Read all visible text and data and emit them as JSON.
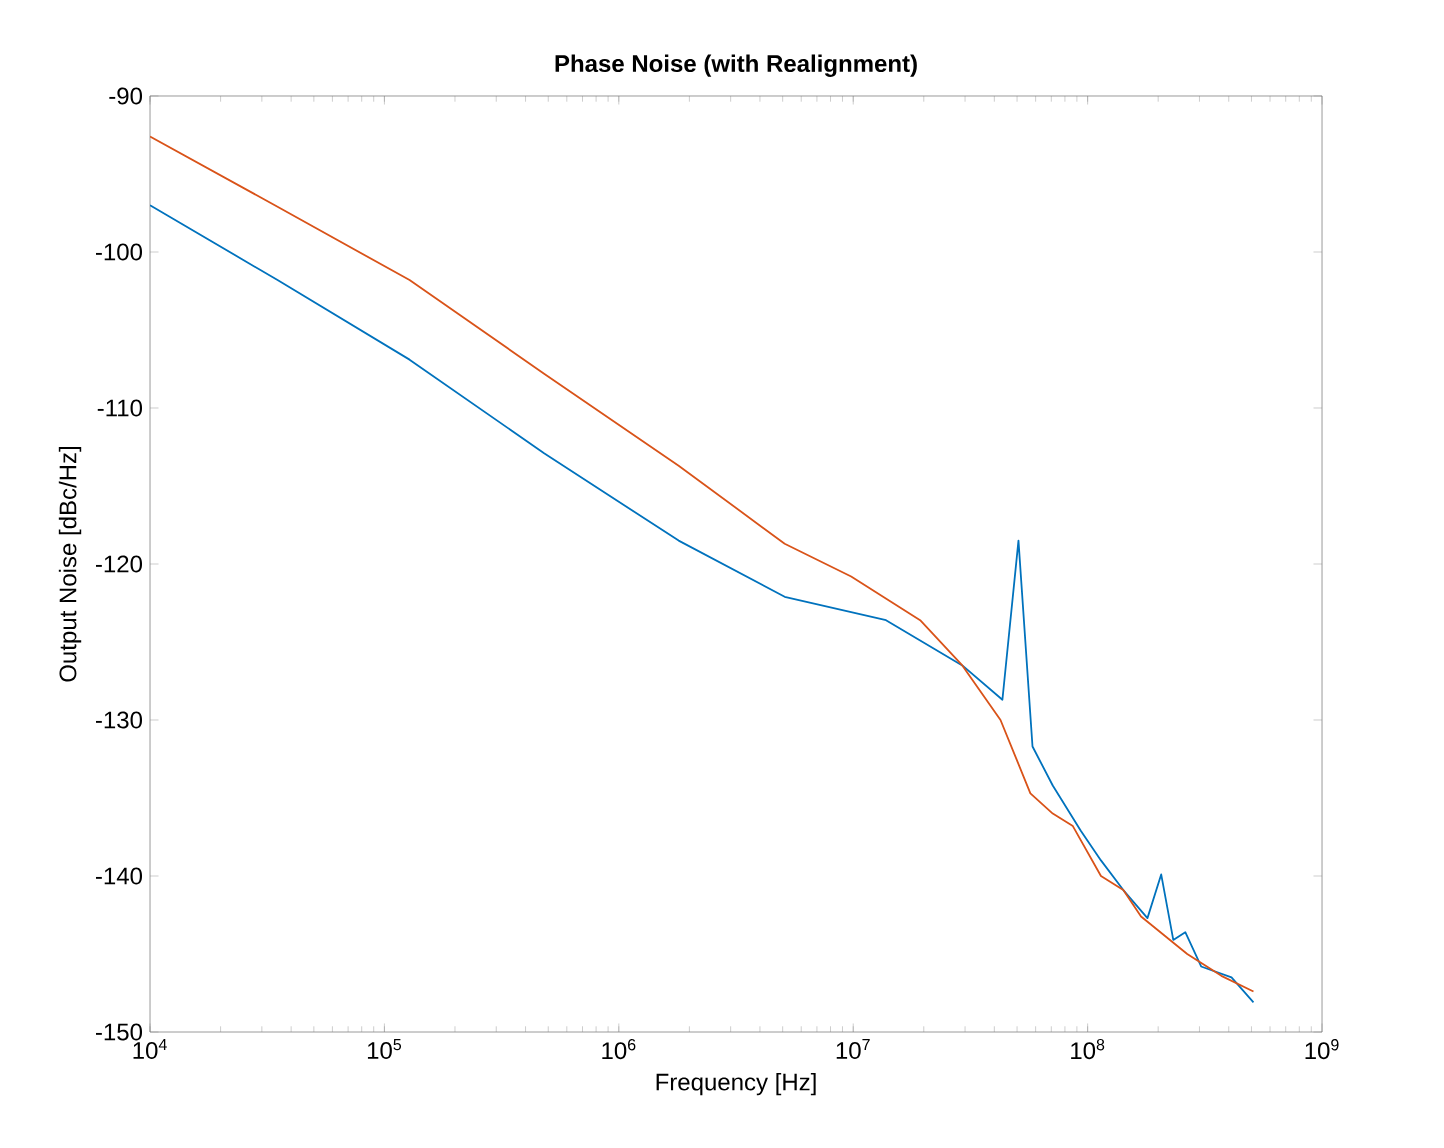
{
  "chart_data": {
    "type": "line",
    "title": "Phase Noise (with Realignment)",
    "xlabel": "Frequency [Hz]",
    "ylabel": "Output Noise [dBc/Hz]",
    "log": "x",
    "xlim": [
      10000,
      1000000000
    ],
    "ylim": [
      -150,
      -90
    ],
    "xticks": [
      {
        "value": 10000,
        "label": "10$^{4}$"
      },
      {
        "value": 100000,
        "label": "10$^{5}$"
      },
      {
        "value": 1000000,
        "label": "10$^{6}$"
      },
      {
        "value": 10000000,
        "label": "10$^{7}$"
      },
      {
        "value": 100000000,
        "label": "10$^{8}$"
      },
      {
        "value": 1000000000,
        "label": "10$^{9}$"
      }
    ],
    "yticks": [
      -150,
      -140,
      -130,
      -120,
      -110,
      -100,
      -90
    ],
    "series": [
      {
        "color": "#0072bd",
        "x": [
          10000,
          35000,
          128000,
          480000,
          1800000,
          5100000,
          13800000,
          29200000,
          43300000,
          50700000,
          58200000,
          71000000,
          93500000,
          114000000,
          142000000,
          180000000,
          206000000,
          232000000,
          261000000,
          305000000,
          411000000,
          510000000
        ],
        "values": [
          -97.0,
          -101.8,
          -106.9,
          -112.9,
          -118.5,
          -122.1,
          -123.6,
          -126.5,
          -128.7,
          -118.5,
          -131.7,
          -134.2,
          -137.1,
          -139.0,
          -140.9,
          -142.7,
          -139.9,
          -144.1,
          -143.6,
          -145.8,
          -146.5,
          -148.1
        ]
      },
      {
        "color": "#d95319",
        "x": [
          10000,
          35000,
          128000,
          480000,
          1800000,
          5100000,
          9800000,
          19300000,
          29200000,
          42500000,
          57000000,
          71000000,
          86500000,
          114000000,
          142000000,
          169000000,
          266000000,
          372000000,
          510000000
        ],
        "values": [
          -92.6,
          -97.1,
          -101.8,
          -107.8,
          -113.7,
          -118.7,
          -120.8,
          -123.6,
          -126.5,
          -130.0,
          -134.7,
          -136.0,
          -136.8,
          -140.0,
          -140.9,
          -142.6,
          -145.0,
          -146.4,
          -147.4
        ]
      }
    ]
  }
}
